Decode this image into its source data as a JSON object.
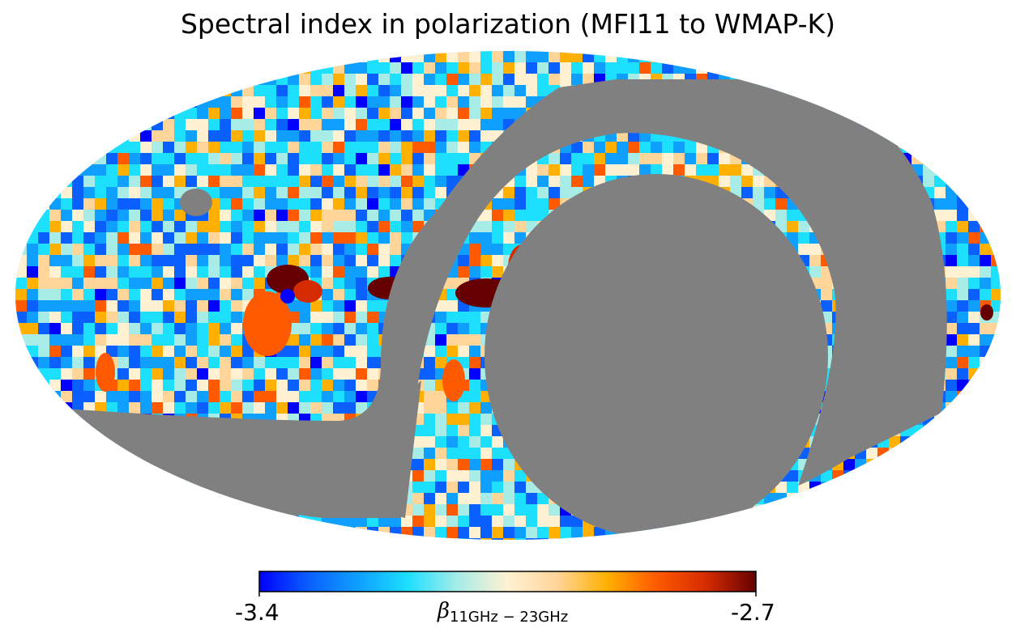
{
  "chart_data": {
    "type": "heatmap",
    "projection": "mollweide",
    "title": "Spectral index in polarization (MFI11 to WMAP-K)",
    "colorbar": {
      "min": -3.4,
      "max": -2.7,
      "min_label": "-3.4",
      "max_label": "-2.7",
      "label_symbol": "β",
      "label_subscript": "11GHz − 23GHz",
      "orientation": "horizontal",
      "colors": [
        "#0000ff",
        "#0a60ff",
        "#0fa0ff",
        "#1de0ff",
        "#a8ece8",
        "#fff1d2",
        "#ffd59a",
        "#ffb000",
        "#ff5a00",
        "#d42c00",
        "#660000"
      ]
    },
    "masked_color": "#808080",
    "masked_regions": [
      "galactic plane band",
      "northern declination-limit cap",
      "small circular point-source mask"
    ],
    "notable_features": [
      "steep-spectrum (high β) clumps near the galactic plane edges",
      "flatter (low β) blue regions at high latitude"
    ]
  }
}
